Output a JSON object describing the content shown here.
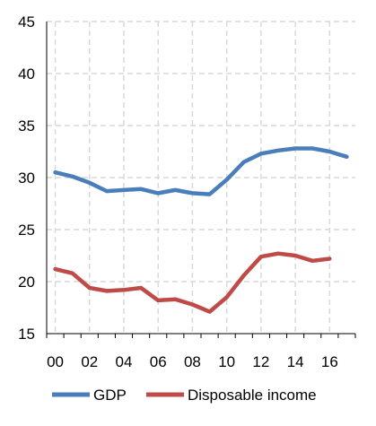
{
  "chart_data": {
    "type": "line",
    "x": [
      "00",
      "01",
      "02",
      "03",
      "04",
      "05",
      "06",
      "07",
      "08",
      "09",
      "10",
      "11",
      "12",
      "13",
      "14",
      "15",
      "16",
      "17"
    ],
    "x_tick_labels": [
      "00",
      "02",
      "04",
      "06",
      "08",
      "10",
      "12",
      "14",
      "16"
    ],
    "ylim": [
      15,
      45
    ],
    "y_ticks": [
      15,
      20,
      25,
      30,
      35,
      40,
      45
    ],
    "grid": "dashed, both axes",
    "legend": "bottom",
    "series": [
      {
        "name": "GDP",
        "color": "#4a7ebb",
        "values": [
          30.5,
          30.1,
          29.5,
          28.7,
          28.8,
          28.9,
          28.5,
          28.8,
          28.5,
          28.4,
          29.8,
          31.5,
          32.3,
          32.6,
          32.8,
          32.8,
          32.5,
          32.0
        ]
      },
      {
        "name": "Disposable income",
        "color": "#be4b48",
        "values": [
          21.2,
          20.8,
          19.4,
          19.1,
          19.2,
          19.4,
          18.2,
          18.3,
          17.8,
          17.1,
          18.5,
          20.6,
          22.4,
          22.7,
          22.5,
          22.0,
          22.2,
          null
        ]
      }
    ]
  }
}
